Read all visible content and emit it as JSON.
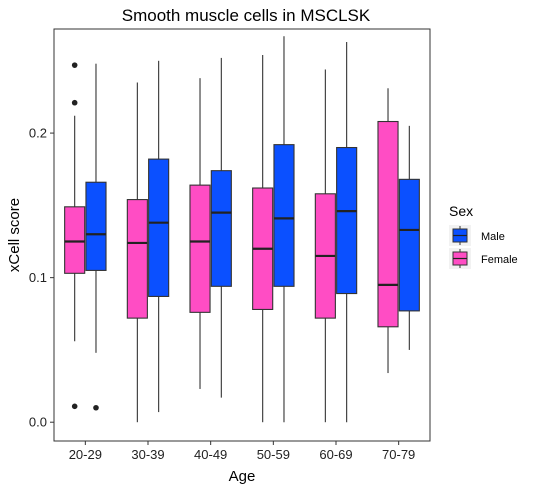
{
  "chart_data": {
    "type": "boxplot",
    "title": "Smooth muscle cells in MSCLSK",
    "xlabel": "Age",
    "ylabel": "xCell score",
    "categories": [
      "20-29",
      "30-39",
      "40-49",
      "50-59",
      "60-69",
      "70-79"
    ],
    "ylim": [
      -0.013,
      0.272
    ],
    "yticks": [
      0.0,
      0.1,
      0.2
    ],
    "ytick_labels": [
      "0.0",
      "0.1",
      "0.2"
    ],
    "grid": false,
    "legend": {
      "title": "Sex",
      "position": "right",
      "entries": [
        "Male",
        "Female"
      ]
    },
    "series": [
      {
        "name": "Female",
        "color": "#FF4DC4",
        "boxes": [
          {
            "min": 0.056,
            "q1": 0.103,
            "median": 0.125,
            "q3": 0.149,
            "max": 0.212,
            "outliers": [
              0.247,
              0.221,
              0.011
            ]
          },
          {
            "min": 0.0,
            "q1": 0.072,
            "median": 0.124,
            "q3": 0.154,
            "max": 0.235,
            "outliers": []
          },
          {
            "min": 0.023,
            "q1": 0.076,
            "median": 0.125,
            "q3": 0.164,
            "max": 0.238,
            "outliers": []
          },
          {
            "min": 0.0,
            "q1": 0.078,
            "median": 0.12,
            "q3": 0.162,
            "max": 0.254,
            "outliers": []
          },
          {
            "min": 0.0,
            "q1": 0.072,
            "median": 0.115,
            "q3": 0.158,
            "max": 0.244,
            "outliers": []
          },
          {
            "min": 0.034,
            "q1": 0.066,
            "median": 0.095,
            "q3": 0.208,
            "max": 0.231,
            "outliers": []
          }
        ]
      },
      {
        "name": "Male",
        "color": "#0B50FF",
        "boxes": [
          {
            "min": 0.048,
            "q1": 0.105,
            "median": 0.13,
            "q3": 0.166,
            "max": 0.248,
            "outliers": [
              0.01
            ]
          },
          {
            "min": 0.007,
            "q1": 0.087,
            "median": 0.138,
            "q3": 0.182,
            "max": 0.25,
            "outliers": []
          },
          {
            "min": 0.017,
            "q1": 0.094,
            "median": 0.145,
            "q3": 0.174,
            "max": 0.252,
            "outliers": []
          },
          {
            "min": 0.0,
            "q1": 0.094,
            "median": 0.141,
            "q3": 0.192,
            "max": 0.267,
            "outliers": []
          },
          {
            "min": 0.0,
            "q1": 0.089,
            "median": 0.146,
            "q3": 0.19,
            "max": 0.263,
            "outliers": []
          },
          {
            "min": 0.05,
            "q1": 0.077,
            "median": 0.133,
            "q3": 0.168,
            "max": 0.205,
            "outliers": []
          }
        ]
      }
    ]
  }
}
